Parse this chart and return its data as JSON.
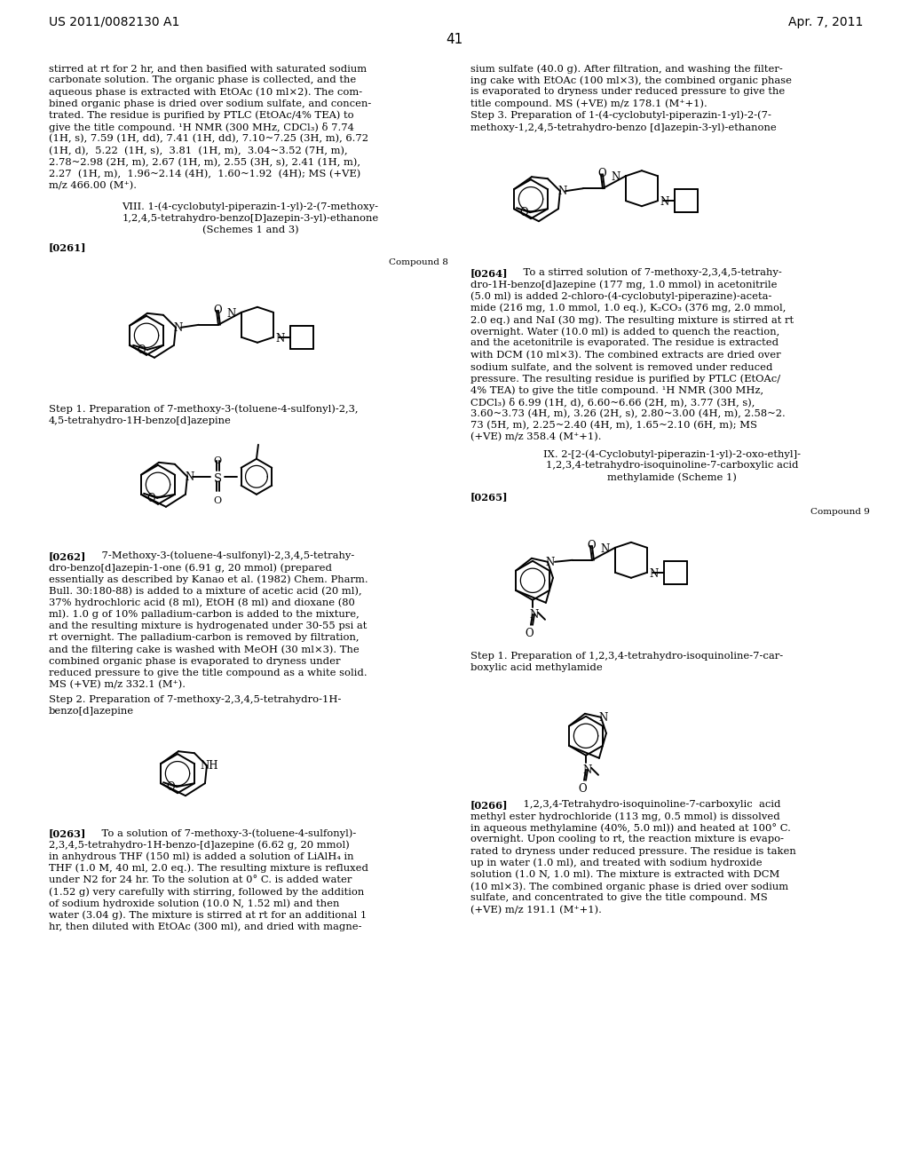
{
  "bg_color": "#ffffff",
  "header_left": "US 2011/0082130 A1",
  "header_right": "Apr. 7, 2011",
  "page_number": "41"
}
